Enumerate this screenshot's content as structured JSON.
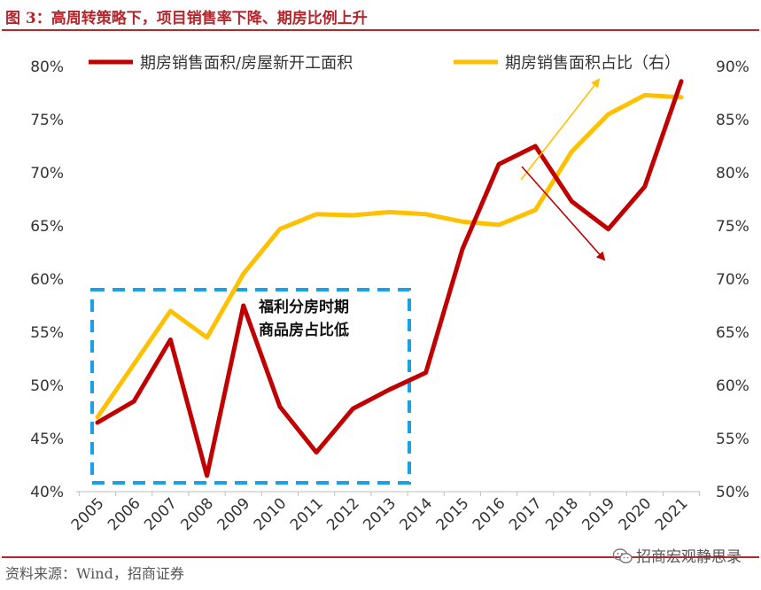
{
  "title": "图 3：高周转策略下，项目销售率下降、期房比例上升",
  "source": "资料来源：Wind，招商证券",
  "watermark": "招商宏观静思录",
  "chart_data": {
    "type": "line",
    "categories": [
      "2005",
      "2006",
      "2007",
      "2008",
      "2009",
      "2010",
      "2011",
      "2012",
      "2013",
      "2014",
      "2015",
      "2016",
      "2017",
      "2018",
      "2019",
      "2020",
      "2021"
    ],
    "series": [
      {
        "name": "期房销售面积/房屋新开工面积",
        "axis": "left",
        "color": "#c00000",
        "values": [
          46.5,
          48.5,
          54.3,
          41.5,
          57.5,
          48.0,
          43.7,
          47.8,
          49.6,
          51.2,
          62.8,
          70.8,
          72.5,
          67.3,
          64.7,
          68.7,
          78.6
        ]
      },
      {
        "name": "期房销售面积占比（右）",
        "axis": "right",
        "color": "#ffc000",
        "values": [
          57.0,
          62.0,
          67.0,
          64.5,
          70.5,
          74.7,
          76.1,
          76.0,
          76.3,
          76.1,
          75.4,
          75.1,
          76.5,
          82.0,
          85.5,
          87.3,
          87.1
        ]
      }
    ],
    "y_left": {
      "ylim": [
        40,
        80
      ],
      "ticks": [
        "40%",
        "45%",
        "50%",
        "55%",
        "60%",
        "65%",
        "70%",
        "75%",
        "80%"
      ]
    },
    "y_right": {
      "ylim": [
        50,
        90
      ],
      "ticks": [
        "50%",
        "55%",
        "60%",
        "65%",
        "70%",
        "75%",
        "80%",
        "85%",
        "90%"
      ]
    },
    "legend": "top",
    "grid": false,
    "annotation": {
      "lines": [
        "福利分房时期",
        "商品房占比低"
      ]
    },
    "arrow_up_color": "#ffc000",
    "arrow_down_color": "#c00000",
    "box_color": "#1aa0e6"
  }
}
